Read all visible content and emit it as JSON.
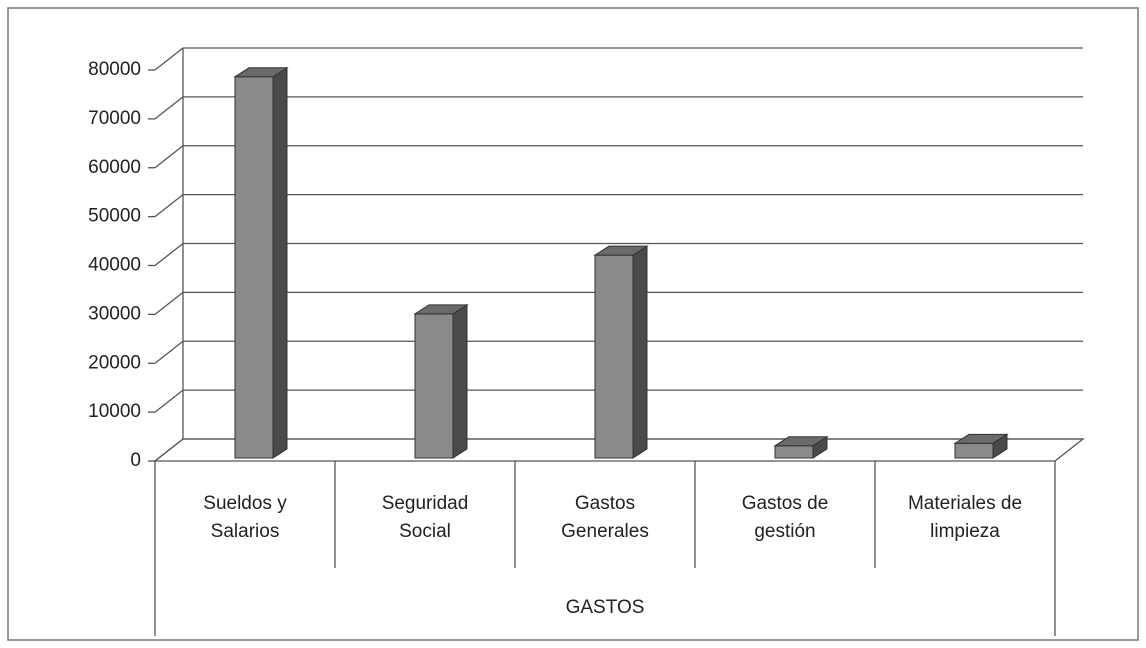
{
  "chart_data": {
    "type": "bar3d",
    "x_label": "GASTOS",
    "categories": [
      "Sueldos y\nSalarios",
      "Seguridad\nSocial",
      "Gastos\nGenerales",
      "Gastos de\ngestión",
      "Materiales de\nlimpieza"
    ],
    "values": [
      78000,
      29500,
      41500,
      2500,
      3000
    ],
    "color": "#8a8a8a",
    "ylim": [
      0,
      80000
    ],
    "yticks": [
      0,
      10000,
      20000,
      30000,
      40000,
      50000,
      60000,
      70000,
      80000
    ],
    "grid": true
  }
}
